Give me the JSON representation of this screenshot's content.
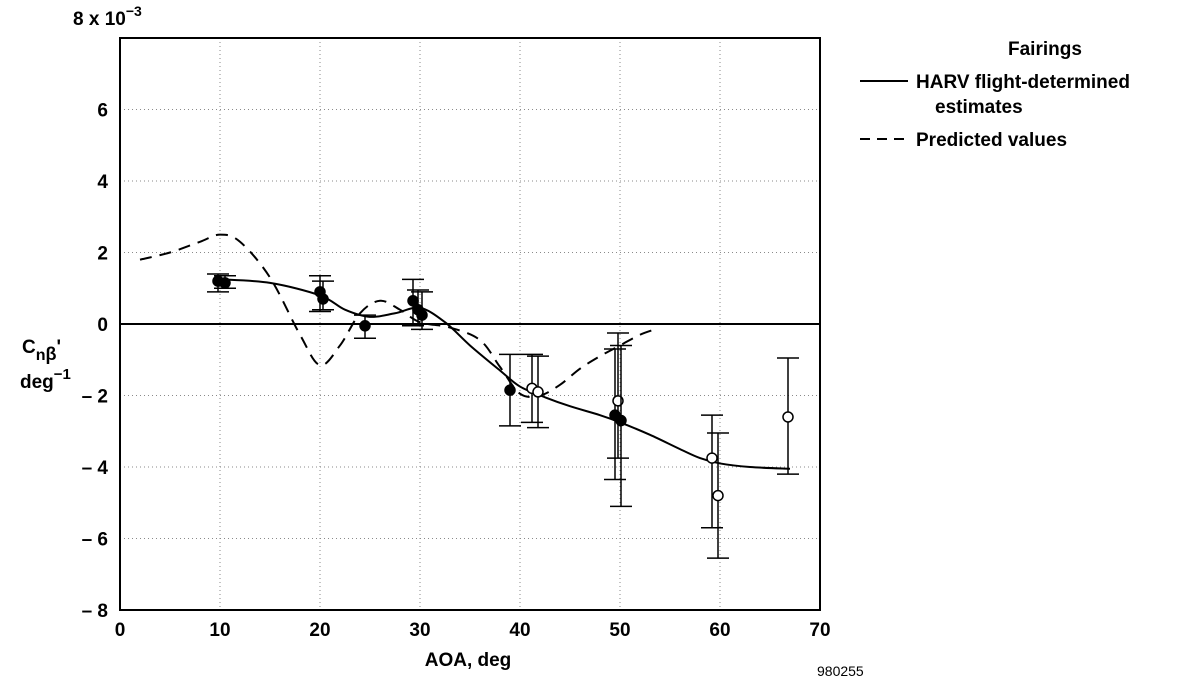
{
  "chart_data": {
    "type": "line",
    "xlabel": "AOA, deg",
    "ylabel": {
      "main": "C",
      "sub_n": "n",
      "sub_beta": "β",
      "prime": "'",
      "unit_base": "deg",
      "unit_exp": "−1"
    },
    "y_multiplier": {
      "base": "8 x 10",
      "exponent": "−3"
    },
    "xlim": [
      0,
      70
    ],
    "ylim": [
      -8,
      8
    ],
    "x_ticks": [
      {
        "value": 0,
        "label": "0"
      },
      {
        "value": 10,
        "label": "10"
      },
      {
        "value": 20,
        "label": "20"
      },
      {
        "value": 30,
        "label": "30"
      },
      {
        "value": 40,
        "label": "40"
      },
      {
        "value": 50,
        "label": "50"
      },
      {
        "value": 60,
        "label": "60"
      },
      {
        "value": 70,
        "label": "70"
      }
    ],
    "y_ticks": [
      {
        "value": 6,
        "label": "6"
      },
      {
        "value": 4,
        "label": "4"
      },
      {
        "value": 2,
        "label": "2"
      },
      {
        "value": 0,
        "label": "0"
      },
      {
        "value": -2,
        "label": "– 2"
      },
      {
        "value": -4,
        "label": "– 4"
      },
      {
        "value": -6,
        "label": "– 6"
      },
      {
        "value": -8,
        "label": "– 8"
      }
    ],
    "grid": true,
    "legend": {
      "title": "Fairings",
      "position": "right",
      "entries": [
        {
          "label_lines": [
            "HARV flight-determined",
            "estimates"
          ],
          "style": "solid"
        },
        {
          "label_lines": [
            "Predicted values"
          ],
          "style": "dashed"
        }
      ]
    },
    "series": [
      {
        "name": "HARV flight-determined estimates",
        "style": "solid",
        "x": [
          10,
          15,
          20,
          22.5,
          25,
          27.5,
          30,
          32.5,
          35,
          38,
          40,
          42.5,
          45,
          48,
          50,
          53,
          56,
          58,
          60,
          63,
          67
        ],
        "y": [
          1.25,
          1.15,
          0.8,
          0.4,
          0.2,
          0.3,
          0.45,
          0.05,
          -0.6,
          -1.3,
          -1.75,
          -2.05,
          -2.3,
          -2.55,
          -2.75,
          -3.1,
          -3.5,
          -3.75,
          -3.9,
          -4.0,
          -4.05
        ]
      },
      {
        "name": "Predicted values",
        "style": "dashed",
        "x": [
          2,
          5,
          8,
          10,
          12,
          15,
          18,
          20,
          22,
          24,
          26,
          28,
          30,
          33,
          36,
          38,
          40,
          42,
          44,
          46,
          48,
          50,
          52,
          53.5
        ],
        "y": [
          1.8,
          2.0,
          2.3,
          2.5,
          2.3,
          1.3,
          -0.3,
          -1.15,
          -0.6,
          0.3,
          0.65,
          0.4,
          0.05,
          -0.1,
          -0.45,
          -1.2,
          -1.95,
          -2.0,
          -1.7,
          -1.25,
          -0.9,
          -0.6,
          -0.3,
          -0.15
        ]
      }
    ],
    "estimates": [
      {
        "x": 9.8,
        "y": 1.2,
        "low": 0.9,
        "high": 1.4,
        "filled": true
      },
      {
        "x": 10.5,
        "y": 1.15,
        "low": 1.0,
        "high": 1.35,
        "filled": true
      },
      {
        "x": 20,
        "y": 0.9,
        "low": 0.35,
        "high": 1.35,
        "filled": true
      },
      {
        "x": 20.3,
        "y": 0.7,
        "low": 0.4,
        "high": 1.2,
        "filled": true
      },
      {
        "x": 24.5,
        "y": -0.05,
        "low": -0.4,
        "high": 0.25,
        "filled": true
      },
      {
        "x": 29.3,
        "y": 0.65,
        "low": -0.05,
        "high": 1.25,
        "filled": true
      },
      {
        "x": 29.8,
        "y": 0.4,
        "low": 0.0,
        "high": 0.95,
        "filled": true
      },
      {
        "x": 30.2,
        "y": 0.25,
        "low": -0.15,
        "high": 0.9,
        "filled": true
      },
      {
        "x": 39,
        "y": -1.85,
        "low": -2.85,
        "high": -0.85,
        "filled": true
      },
      {
        "x": 41.2,
        "y": -1.8,
        "low": -2.75,
        "high": -0.85,
        "filled": false
      },
      {
        "x": 41.8,
        "y": -1.9,
        "low": -2.9,
        "high": -0.9,
        "filled": false
      },
      {
        "x": 49.5,
        "y": -2.55,
        "low": -4.35,
        "high": -0.7,
        "filled": true
      },
      {
        "x": 49.8,
        "y": -2.15,
        "low": -3.75,
        "high": -0.25,
        "filled": false
      },
      {
        "x": 50.1,
        "y": -2.7,
        "low": -5.1,
        "high": -0.6,
        "filled": true
      },
      {
        "x": 59.2,
        "y": -3.75,
        "low": -5.7,
        "high": -2.55,
        "filled": false
      },
      {
        "x": 59.8,
        "y": -4.8,
        "low": -6.55,
        "high": -3.05,
        "filled": false
      },
      {
        "x": 66.8,
        "y": -2.6,
        "low": -4.2,
        "high": -0.95,
        "filled": false
      }
    ]
  },
  "figure_id": "980255"
}
